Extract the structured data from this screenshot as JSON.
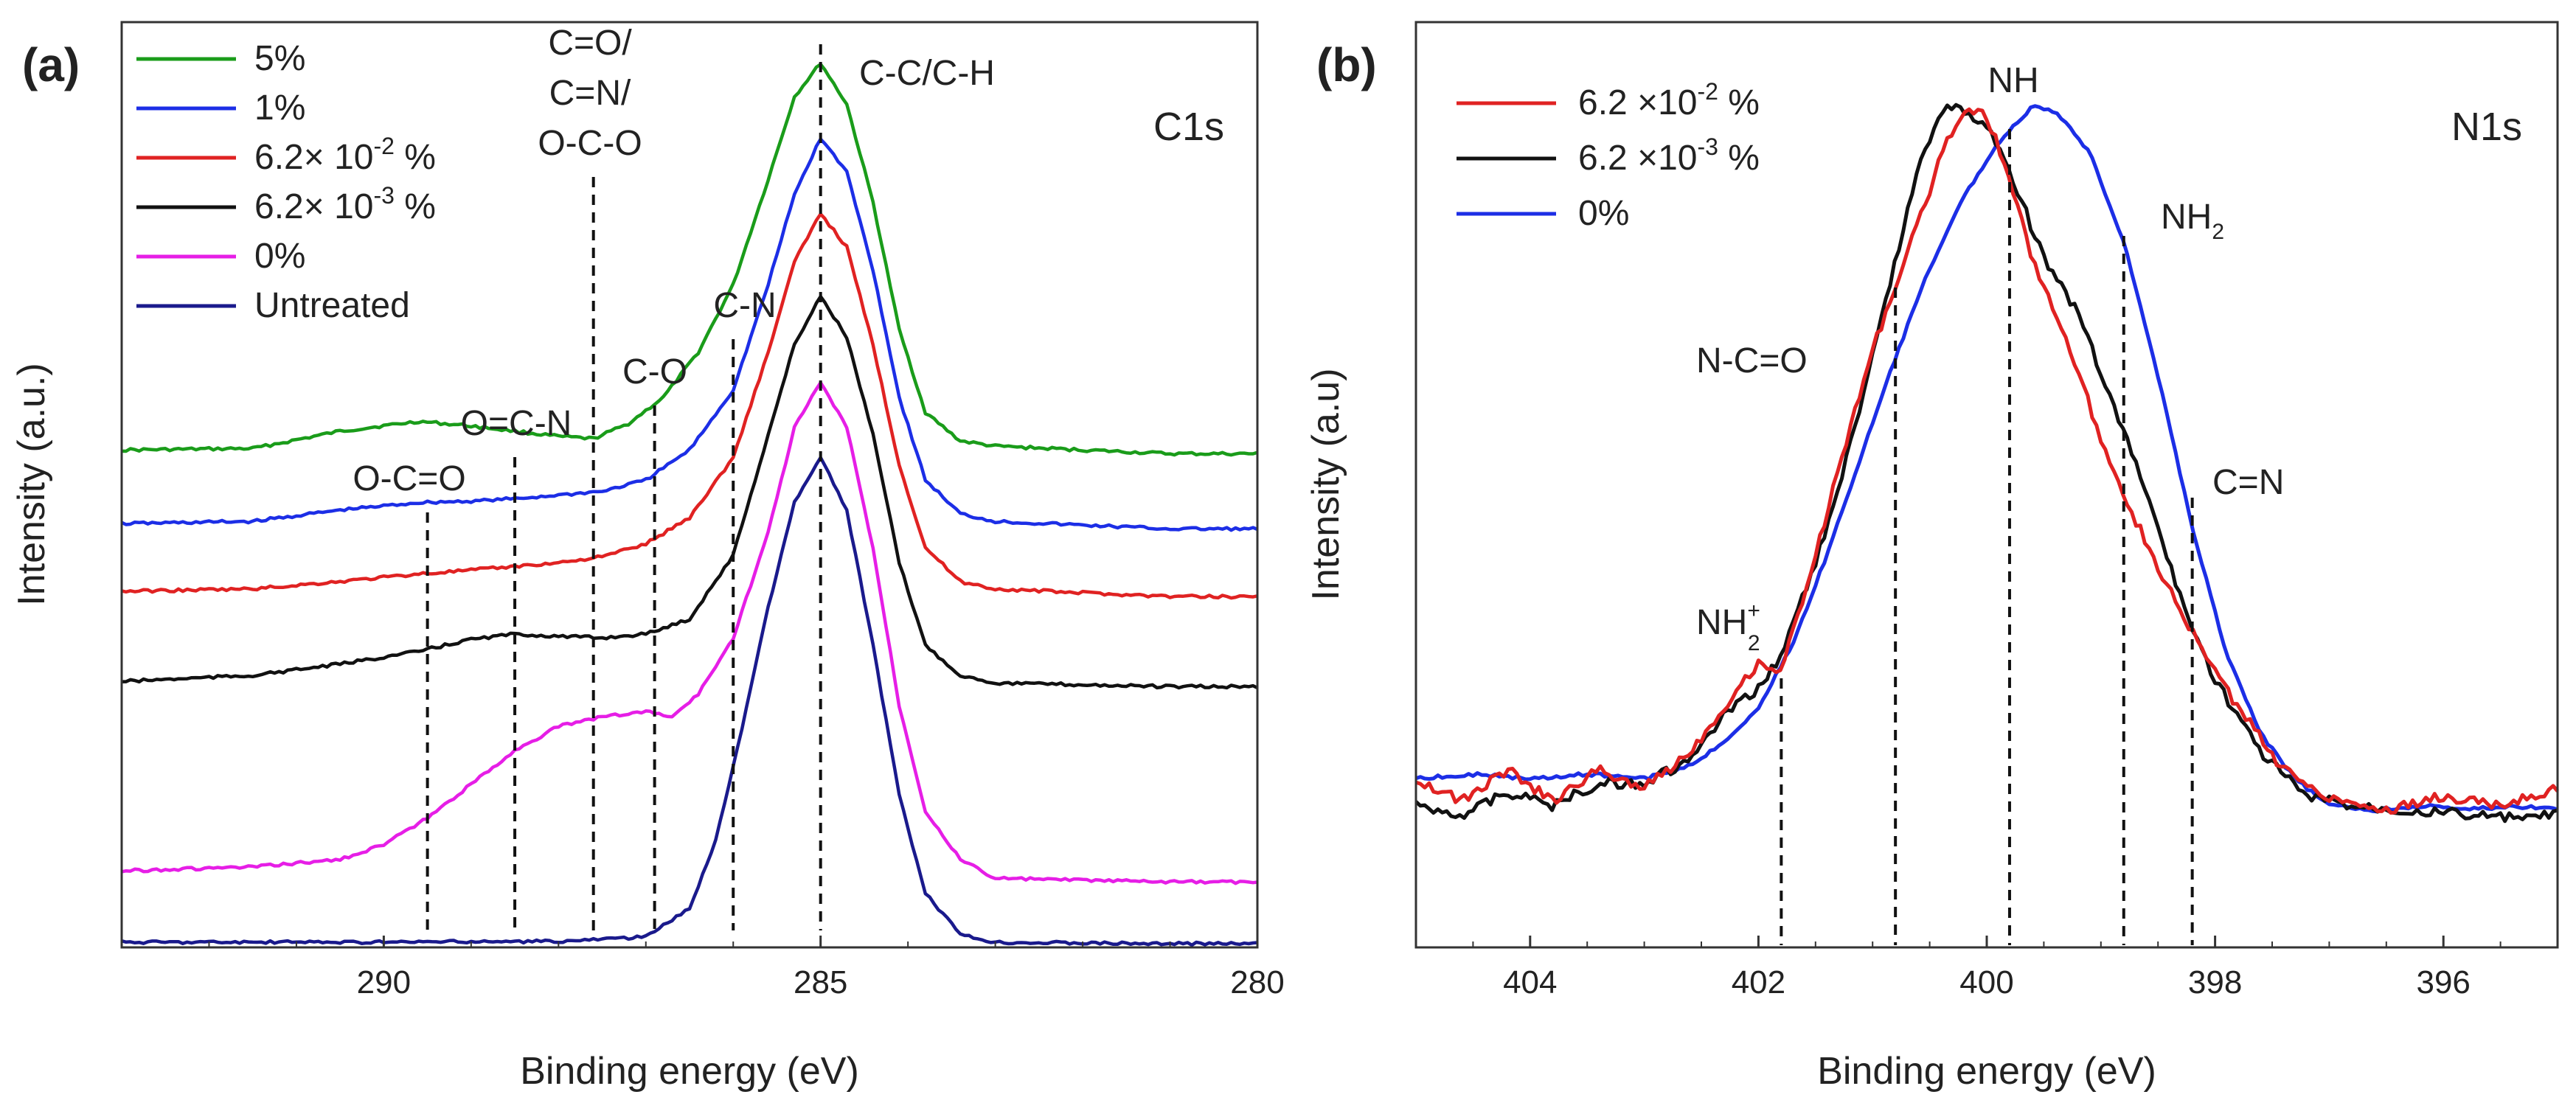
{
  "chart_data": [
    {
      "panel": "(a)",
      "type": "line",
      "core_level": "C1s",
      "xlabel": "Binding energy (eV)",
      "ylabel": "Intensity (a.u.)",
      "xlim": [
        293,
        280
      ],
      "x_reversed": true,
      "ylim": [
        0,
        12
      ],
      "x_ticks": [
        290,
        285,
        280
      ],
      "y_ticks_shown": false,
      "legend_position": "top-left",
      "series": [
        {
          "name": "5%",
          "label": [
            "5%"
          ],
          "color": "#1a9c1a",
          "baseline": 6.6,
          "points": [
            [
              293,
              6.6
            ],
            [
              291.5,
              6.62
            ],
            [
              290.5,
              6.85
            ],
            [
              289.6,
              6.98
            ],
            [
              289,
              6.92
            ],
            [
              288.5,
              6.85
            ],
            [
              288,
              6.78
            ],
            [
              287.6,
              6.75
            ],
            [
              287.2,
              6.95
            ],
            [
              286.8,
              7.3
            ],
            [
              286.4,
              7.9
            ],
            [
              286,
              8.8
            ],
            [
              285.6,
              10.2
            ],
            [
              285.3,
              11.3
            ],
            [
              285,
              11.75
            ],
            [
              284.7,
              11.2
            ],
            [
              284.4,
              9.9
            ],
            [
              284.1,
              8.2
            ],
            [
              283.8,
              7.1
            ],
            [
              283.4,
              6.72
            ],
            [
              283,
              6.65
            ],
            [
              281,
              6.55
            ],
            [
              280,
              6.55
            ]
          ]
        },
        {
          "name": "1%",
          "label": [
            "1%"
          ],
          "color": "#1c2ee6",
          "baseline": 5.6,
          "points": [
            [
              293,
              5.62
            ],
            [
              291.5,
              5.65
            ],
            [
              290.5,
              5.8
            ],
            [
              289.6,
              5.9
            ],
            [
              289,
              5.92
            ],
            [
              288.5,
              5.95
            ],
            [
              288,
              6.0
            ],
            [
              287.5,
              6.05
            ],
            [
              287,
              6.2
            ],
            [
              286.5,
              6.6
            ],
            [
              286,
              7.4
            ],
            [
              285.6,
              8.8
            ],
            [
              285.3,
              10.0
            ],
            [
              285,
              10.75
            ],
            [
              284.7,
              10.3
            ],
            [
              284.4,
              9.0
            ],
            [
              284.1,
              7.3
            ],
            [
              283.8,
              6.2
            ],
            [
              283.4,
              5.75
            ],
            [
              283,
              5.65
            ],
            [
              281,
              5.55
            ],
            [
              280,
              5.55
            ]
          ]
        },
        {
          "name": "6.2× 10-2 %",
          "label": [
            "6.2× 10",
            "-2",
            " %"
          ],
          "color": "#e02222",
          "baseline": 4.7,
          "points": [
            [
              293,
              4.72
            ],
            [
              291.5,
              4.75
            ],
            [
              290.5,
              4.85
            ],
            [
              289.6,
              4.95
            ],
            [
              289,
              5.0
            ],
            [
              288.5,
              5.05
            ],
            [
              288,
              5.1
            ],
            [
              287.5,
              5.18
            ],
            [
              287,
              5.35
            ],
            [
              286.5,
              5.7
            ],
            [
              286,
              6.5
            ],
            [
              285.6,
              7.9
            ],
            [
              285.3,
              9.1
            ],
            [
              285,
              9.75
            ],
            [
              284.7,
              9.3
            ],
            [
              284.4,
              8.0
            ],
            [
              284.1,
              6.4
            ],
            [
              283.8,
              5.3
            ],
            [
              283.4,
              4.85
            ],
            [
              283,
              4.75
            ],
            [
              281,
              4.65
            ],
            [
              280,
              4.65
            ]
          ]
        },
        {
          "name": "6.2× 10-3 %",
          "label": [
            "6.2× 10",
            "-3",
            " %"
          ],
          "color": "#111111",
          "baseline": 3.5,
          "points": [
            [
              293,
              3.52
            ],
            [
              291.5,
              3.6
            ],
            [
              290.5,
              3.75
            ],
            [
              289.6,
              3.92
            ],
            [
              289,
              4.08
            ],
            [
              288.5,
              4.15
            ],
            [
              288,
              4.12
            ],
            [
              287.5,
              4.1
            ],
            [
              287,
              4.15
            ],
            [
              286.5,
              4.35
            ],
            [
              286,
              5.2
            ],
            [
              285.6,
              6.8
            ],
            [
              285.3,
              8.0
            ],
            [
              285,
              8.65
            ],
            [
              284.7,
              8.1
            ],
            [
              284.4,
              6.8
            ],
            [
              284.1,
              5.1
            ],
            [
              283.8,
              4.0
            ],
            [
              283.4,
              3.6
            ],
            [
              283,
              3.5
            ],
            [
              281,
              3.45
            ],
            [
              280,
              3.45
            ]
          ]
        },
        {
          "name": "0%",
          "label": [
            "0%"
          ],
          "color": "#e61ee6",
          "baseline": 1.0,
          "points": [
            [
              293,
              1.0
            ],
            [
              291.5,
              1.05
            ],
            [
              290.5,
              1.15
            ],
            [
              290,
              1.35
            ],
            [
              289.5,
              1.7
            ],
            [
              289,
              2.15
            ],
            [
              288.5,
              2.6
            ],
            [
              288,
              2.92
            ],
            [
              287.5,
              3.05
            ],
            [
              287,
              3.12
            ],
            [
              286.7,
              3.05
            ],
            [
              286.4,
              3.35
            ],
            [
              286,
              4.1
            ],
            [
              285.6,
              5.5
            ],
            [
              285.3,
              6.9
            ],
            [
              285,
              7.5
            ],
            [
              284.7,
              6.9
            ],
            [
              284.4,
              5.3
            ],
            [
              284.1,
              3.2
            ],
            [
              283.8,
              1.8
            ],
            [
              283.4,
              1.15
            ],
            [
              283,
              0.9
            ],
            [
              281,
              0.85
            ],
            [
              280,
              0.85
            ]
          ]
        },
        {
          "name": "Untreated",
          "label": [
            "Untreated"
          ],
          "color": "#1a1a8c",
          "baseline": 0.05,
          "points": [
            [
              293,
              0.05
            ],
            [
              290,
              0.05
            ],
            [
              288,
              0.06
            ],
            [
              287,
              0.12
            ],
            [
              286.5,
              0.5
            ],
            [
              286.2,
              1.4
            ],
            [
              285.9,
              2.9
            ],
            [
              285.6,
              4.5
            ],
            [
              285.3,
              5.9
            ],
            [
              285,
              6.5
            ],
            [
              284.7,
              5.8
            ],
            [
              284.4,
              4.0
            ],
            [
              284.1,
              2.0
            ],
            [
              283.8,
              0.7
            ],
            [
              283.4,
              0.15
            ],
            [
              283,
              0.05
            ],
            [
              281,
              0.03
            ],
            [
              280,
              0.03
            ]
          ]
        }
      ],
      "reference_lines": [
        {
          "label": "O-C=O",
          "lines": [
            "O-C=O"
          ],
          "x": 289.5
        },
        {
          "label": "O=C-N",
          "lines": [
            "O=C-N"
          ],
          "x": 288.5
        },
        {
          "label": "C=O/ C=N/ O-C-O",
          "lines": [
            "C=O/",
            "C=N/",
            "O-C-O"
          ],
          "x": 287.6
        },
        {
          "label": "C-O",
          "lines": [
            "C-O"
          ],
          "x": 286.9
        },
        {
          "label": "C-N",
          "lines": [
            "C-N"
          ],
          "x": 286.0
        },
        {
          "label": "C-C/C-H",
          "lines": [
            "C-C/C-H"
          ],
          "x": 285.0
        }
      ]
    },
    {
      "panel": "(b)",
      "type": "line",
      "core_level": "N1s",
      "xlabel": "Binding energy (eV)",
      "ylabel": "Intensity (a.u)",
      "xlim": [
        405,
        395
      ],
      "x_reversed": true,
      "ylim": [
        0,
        10
      ],
      "x_ticks": [
        404,
        402,
        400,
        398,
        396
      ],
      "y_ticks_shown": false,
      "legend_position": "top-left",
      "series": [
        {
          "name": "6.2 ×10-2 %",
          "label": [
            "6.2  ×10",
            "-2",
            " %"
          ],
          "color": "#e02222",
          "points": [
            [
              405,
              1.8
            ],
            [
              404.6,
              1.55
            ],
            [
              404.2,
              1.9
            ],
            [
              403.8,
              1.55
            ],
            [
              403.4,
              1.9
            ],
            [
              403,
              1.7
            ],
            [
              402.6,
              2.1
            ],
            [
              402.3,
              2.6
            ],
            [
              402,
              3.1
            ],
            [
              401.8,
              3.0
            ],
            [
              401.5,
              4.3
            ],
            [
              401.2,
              5.7
            ],
            [
              401,
              6.6
            ],
            [
              400.8,
              7.3
            ],
            [
              400.6,
              8.0
            ],
            [
              400.4,
              8.75
            ],
            [
              400.2,
              9.3
            ],
            [
              400,
              9.2
            ],
            [
              399.8,
              8.5
            ],
            [
              399.6,
              7.6
            ],
            [
              399.3,
              6.7
            ],
            [
              399,
              5.6
            ],
            [
              398.7,
              4.7
            ],
            [
              398.4,
              3.9
            ],
            [
              398.1,
              3.2
            ],
            [
              397.8,
              2.6
            ],
            [
              397.4,
              1.9
            ],
            [
              397,
              1.6
            ],
            [
              396.5,
              1.45
            ],
            [
              396,
              1.6
            ],
            [
              395.5,
              1.5
            ],
            [
              395,
              1.7
            ]
          ]
        },
        {
          "name": "6.2 ×10-3 %",
          "label": [
            "6.2  ×10",
            "-3",
            " %"
          ],
          "color": "#111111",
          "points": [
            [
              405,
              1.5
            ],
            [
              404.6,
              1.4
            ],
            [
              404.2,
              1.65
            ],
            [
              403.8,
              1.5
            ],
            [
              403.4,
              1.75
            ],
            [
              403,
              1.75
            ],
            [
              402.6,
              2.0
            ],
            [
              402.3,
              2.5
            ],
            [
              402,
              2.8
            ],
            [
              401.8,
              3.2
            ],
            [
              401.5,
              4.2
            ],
            [
              401.2,
              5.5
            ],
            [
              401,
              6.5
            ],
            [
              400.8,
              7.6
            ],
            [
              400.6,
              8.6
            ],
            [
              400.4,
              9.3
            ],
            [
              400.2,
              9.25
            ],
            [
              400,
              9.1
            ],
            [
              399.8,
              8.6
            ],
            [
              399.5,
              7.6
            ],
            [
              399.2,
              7.0
            ],
            [
              398.9,
              6.0
            ],
            [
              398.6,
              5.0
            ],
            [
              398.3,
              3.8
            ],
            [
              398,
              2.9
            ],
            [
              397.6,
              2.1
            ],
            [
              397.2,
              1.6
            ],
            [
              396.8,
              1.5
            ],
            [
              396.3,
              1.45
            ],
            [
              395.8,
              1.4
            ],
            [
              395.3,
              1.35
            ],
            [
              395,
              1.4
            ]
          ]
        },
        {
          "name": "0%",
          "label": [
            "0%"
          ],
          "color": "#1c2ee6",
          "points": [
            [
              405,
              1.8
            ],
            [
              404.5,
              1.85
            ],
            [
              404,
              1.8
            ],
            [
              403.5,
              1.85
            ],
            [
              403,
              1.8
            ],
            [
              402.6,
              1.95
            ],
            [
              402.3,
              2.2
            ],
            [
              402,
              2.6
            ],
            [
              401.7,
              3.3
            ],
            [
              401.4,
              4.3
            ],
            [
              401.1,
              5.4
            ],
            [
              400.8,
              6.5
            ],
            [
              400.5,
              7.5
            ],
            [
              400.2,
              8.3
            ],
            [
              399.9,
              8.9
            ],
            [
              399.6,
              9.3
            ],
            [
              399.4,
              9.25
            ],
            [
              399.1,
              8.8
            ],
            [
              398.8,
              7.8
            ],
            [
              398.5,
              6.3
            ],
            [
              398.2,
              4.6
            ],
            [
              397.9,
              3.2
            ],
            [
              397.6,
              2.3
            ],
            [
              397.3,
              1.8
            ],
            [
              397,
              1.5
            ],
            [
              396.6,
              1.45
            ],
            [
              396.2,
              1.5
            ],
            [
              395.8,
              1.45
            ],
            [
              395.4,
              1.5
            ],
            [
              395,
              1.45
            ]
          ]
        }
      ],
      "reference_lines": [
        {
          "label": "NH2+",
          "x": 401.8,
          "anchor": "left"
        },
        {
          "label": "N-C=O",
          "x": 400.8,
          "anchor": "left"
        },
        {
          "label": "NH",
          "x": 399.8,
          "anchor": "top"
        },
        {
          "label": "NH2",
          "x": 398.8,
          "anchor": "right"
        },
        {
          "label": "C=N",
          "x": 398.2,
          "anchor": "right"
        }
      ]
    }
  ]
}
